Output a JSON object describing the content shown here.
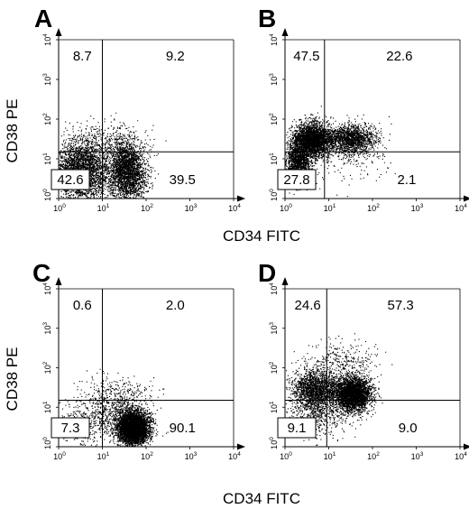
{
  "figure": {
    "x_axis_label": "CD34 FITC",
    "y_axis_label": "CD38 PE",
    "tick_base": "10",
    "tick_exponents": [
      "0",
      "1",
      "2",
      "3",
      "4"
    ]
  },
  "chart_data": [
    {
      "type": "scatter",
      "panel": "A",
      "xlabel": "CD34 FITC",
      "ylabel": "CD38 PE",
      "xscale": "log",
      "yscale": "log",
      "xlim": [
        1,
        10000
      ],
      "ylim": [
        1,
        10000
      ],
      "gate_x": 10,
      "gate_y": 15,
      "quadrants": {
        "upper_left": "8.7",
        "upper_right": "9.2",
        "lower_left": "42.6",
        "lower_right": "39.5"
      },
      "boxed_quadrant": "lower_left",
      "populations": [
        {
          "x_center": 3.2,
          "y_center": 5,
          "x_spread_dec": 0.33,
          "y_spread_dec": 0.38,
          "weight": 0.5
        },
        {
          "x_center": 35,
          "y_center": 5,
          "x_spread_dec": 0.22,
          "y_spread_dec": 0.38,
          "weight": 0.45
        },
        {
          "x_center": 10,
          "y_center": 28,
          "x_spread_dec": 0.5,
          "y_spread_dec": 0.25,
          "weight": 0.05
        }
      ]
    },
    {
      "type": "scatter",
      "panel": "B",
      "xlabel": "CD34 FITC",
      "ylabel": "",
      "xscale": "log",
      "yscale": "log",
      "xlim": [
        1,
        10000
      ],
      "ylim": [
        1,
        10000
      ],
      "gate_x": 8,
      "gate_y": 15,
      "quadrants": {
        "upper_left": "47.5",
        "upper_right": "22.6",
        "lower_left": "27.8",
        "lower_right": "2.1"
      },
      "boxed_quadrant": "lower_left",
      "populations": [
        {
          "x_center": 4,
          "y_center": 30,
          "x_spread_dec": 0.22,
          "y_spread_dec": 0.22,
          "weight": 0.45
        },
        {
          "x_center": 2,
          "y_center": 8,
          "x_spread_dec": 0.14,
          "y_spread_dec": 0.28,
          "weight": 0.25
        },
        {
          "x_center": 30,
          "y_center": 32,
          "x_spread_dec": 0.3,
          "y_spread_dec": 0.18,
          "weight": 0.28
        },
        {
          "x_center": 30,
          "y_center": 8,
          "x_spread_dec": 0.4,
          "y_spread_dec": 0.25,
          "weight": 0.02
        }
      ]
    },
    {
      "type": "scatter",
      "panel": "C",
      "xlabel": "CD34 FITC",
      "ylabel": "CD38 PE",
      "xscale": "log",
      "yscale": "log",
      "xlim": [
        1,
        10000
      ],
      "ylim": [
        1,
        10000
      ],
      "gate_x": 10,
      "gate_y": 15,
      "quadrants": {
        "upper_left": "0.6",
        "upper_right": "2.0",
        "lower_left": "7.3",
        "lower_right": "90.1"
      },
      "boxed_quadrant": "lower_left",
      "populations": [
        {
          "x_center": 50,
          "y_center": 3,
          "x_spread_dec": 0.17,
          "y_spread_dec": 0.2,
          "weight": 0.8
        },
        {
          "x_center": 20,
          "y_center": 8,
          "x_spread_dec": 0.4,
          "y_spread_dec": 0.35,
          "weight": 0.12
        },
        {
          "x_center": 4,
          "y_center": 4,
          "x_spread_dec": 0.4,
          "y_spread_dec": 0.35,
          "weight": 0.06
        },
        {
          "x_center": 25,
          "y_center": 30,
          "x_spread_dec": 0.45,
          "y_spread_dec": 0.2,
          "weight": 0.02
        }
      ]
    },
    {
      "type": "scatter",
      "panel": "D",
      "xlabel": "CD34 FITC",
      "ylabel": "",
      "xscale": "log",
      "yscale": "log",
      "xlim": [
        1,
        10000
      ],
      "ylim": [
        1,
        10000
      ],
      "gate_x": 9,
      "gate_y": 15,
      "quadrants": {
        "upper_left": "24.6",
        "upper_right": "57.3",
        "lower_left": "9.1",
        "lower_right": "9.0"
      },
      "boxed_quadrant": "lower_left",
      "populations": [
        {
          "x_center": 35,
          "y_center": 22,
          "x_spread_dec": 0.2,
          "y_spread_dec": 0.22,
          "weight": 0.55
        },
        {
          "x_center": 5,
          "y_center": 30,
          "x_spread_dec": 0.28,
          "y_spread_dec": 0.25,
          "weight": 0.3
        },
        {
          "x_center": 6,
          "y_center": 8,
          "x_spread_dec": 0.3,
          "y_spread_dec": 0.3,
          "weight": 0.1
        },
        {
          "x_center": 20,
          "y_center": 150,
          "x_spread_dec": 0.4,
          "y_spread_dec": 0.25,
          "weight": 0.05
        }
      ]
    }
  ]
}
